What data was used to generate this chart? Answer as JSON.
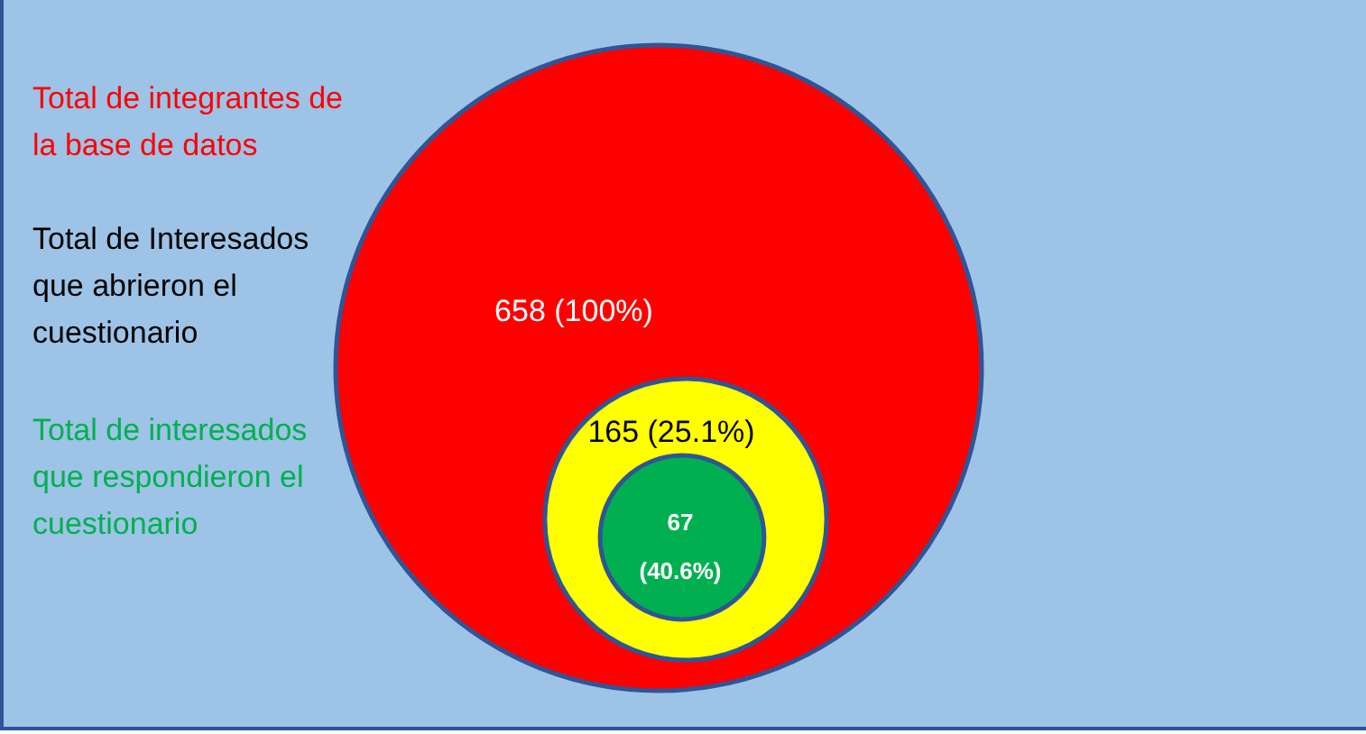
{
  "chart_data": {
    "type": "other",
    "categories": [
      "Total de integrantes de la base de datos",
      "Total de Interesados que abrieron el cuestionario",
      "Total de interesados que respondieron el cuestionario"
    ],
    "values": [
      658,
      165,
      67
    ],
    "colors": [
      "#ff0000",
      "#ffff00",
      "#00b050"
    ],
    "value_labels": [
      "658 (100%)",
      "165 (25.1%)",
      "67 (40.6%)"
    ]
  }
}
